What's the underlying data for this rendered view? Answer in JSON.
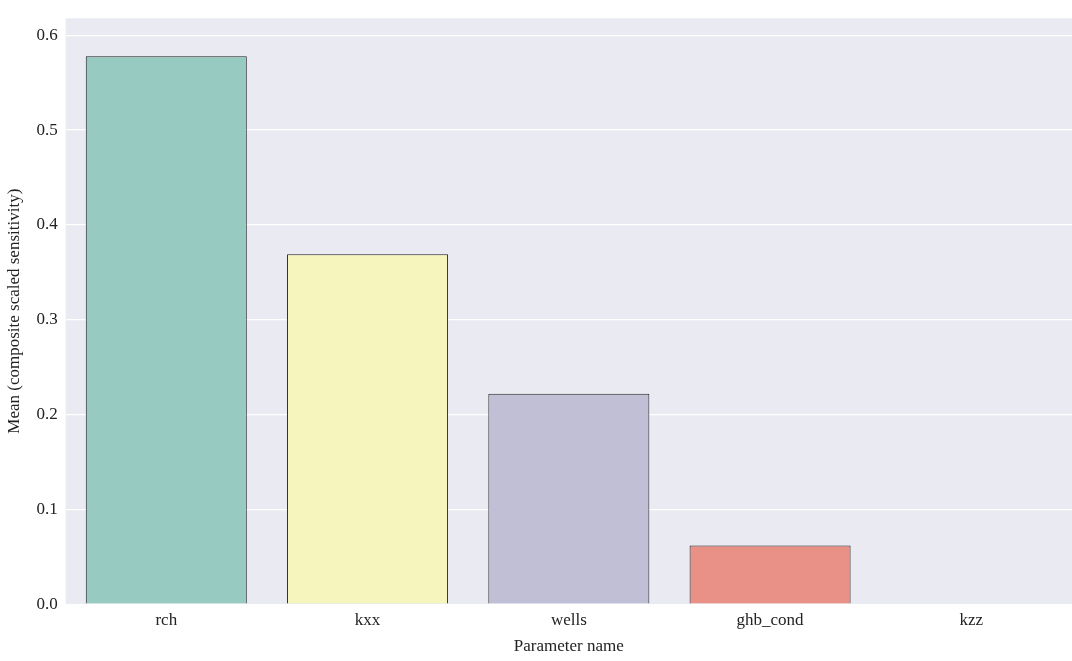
{
  "chart_data": {
    "type": "bar",
    "xlabel": "Parameter name",
    "ylabel": "Mean (composite scaled sensitivity)",
    "categories": [
      "rch",
      "kxx",
      "wells",
      "ghb_cond",
      "kzz"
    ],
    "values": [
      0.578,
      0.369,
      0.222,
      0.062,
      0
    ],
    "colors": [
      "#97cac1",
      "#f5f5bd",
      "#c0bfd6",
      "#e99087",
      "#8fb3cb"
    ],
    "ylim": [
      0,
      0.618
    ],
    "yticks": [
      {
        "value": 0,
        "label": "0.0"
      },
      0.1,
      0.2,
      0.3,
      0.4,
      0.5,
      0.6
    ],
    "grid": "y"
  }
}
